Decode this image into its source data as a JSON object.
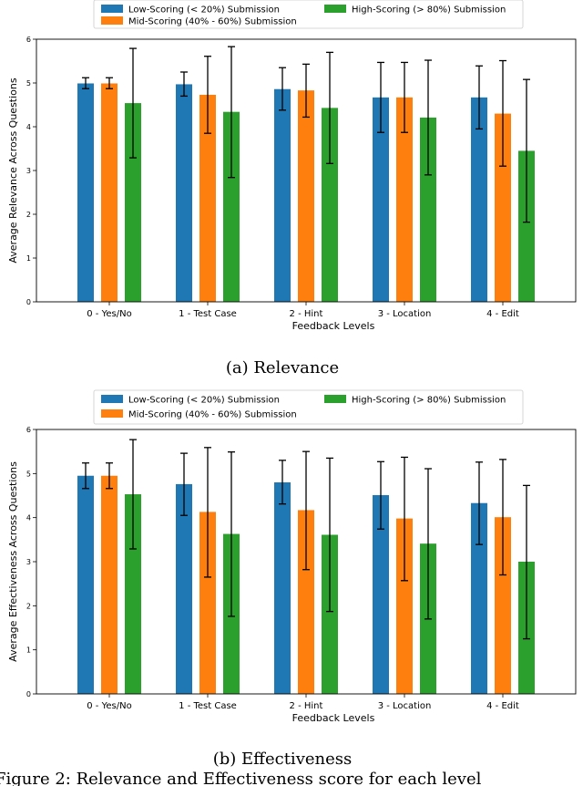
{
  "chart_data": [
    {
      "type": "bar",
      "subcaption": "(a) Relevance",
      "title": "",
      "xlabel": "Feedback Levels",
      "ylabel": "Average Relevance Across Questions",
      "ylim": [
        0,
        6
      ],
      "yticks": [
        "0",
        "1",
        "2",
        "3",
        "4",
        "5",
        "6"
      ],
      "categories": [
        "0 - Yes/No",
        "1 - Test Case",
        "2 - Hint",
        "3 - Location",
        "4 - Edit"
      ],
      "legend_position": "top",
      "series": [
        {
          "name": "Low-Scoring (< 20%) Submission",
          "color": "#1f77b4",
          "values": [
            4.99,
            4.97,
            4.86,
            4.67,
            4.67
          ],
          "err_low": [
            4.87,
            4.7,
            4.38,
            3.87,
            3.95
          ],
          "err_high": [
            5.12,
            5.25,
            5.35,
            5.47,
            5.39
          ]
        },
        {
          "name": "Mid-Scoring (40% - 60%) Submission",
          "color": "#ff7f0e",
          "values": [
            4.99,
            4.73,
            4.83,
            4.67,
            4.3
          ],
          "err_low": [
            4.87,
            3.85,
            4.22,
            3.87,
            3.1
          ],
          "err_high": [
            5.12,
            5.61,
            5.43,
            5.47,
            5.51
          ]
        },
        {
          "name": "High-Scoring (> 80%) Submission",
          "color": "#2ca02c",
          "values": [
            4.54,
            4.34,
            4.43,
            4.21,
            3.45
          ],
          "err_low": [
            3.29,
            2.84,
            3.16,
            2.9,
            1.82
          ],
          "err_high": [
            5.79,
            5.83,
            5.7,
            5.52,
            5.08
          ]
        }
      ]
    },
    {
      "type": "bar",
      "subcaption": "(b) Effectiveness",
      "title": "",
      "xlabel": "Feedback Levels",
      "ylabel": "Average Effectiveness Across Questions",
      "ylim": [
        0,
        6
      ],
      "yticks": [
        "0",
        "1",
        "2",
        "3",
        "4",
        "5",
        "6"
      ],
      "categories": [
        "0 - Yes/No",
        "1 - Test Case",
        "2 - Hint",
        "3 - Location",
        "4 - Edit"
      ],
      "legend_position": "top",
      "series": [
        {
          "name": "Low-Scoring (< 20%) Submission",
          "color": "#1f77b4",
          "values": [
            4.95,
            4.76,
            4.8,
            4.51,
            4.33
          ],
          "err_low": [
            4.66,
            4.05,
            4.31,
            3.74,
            3.39
          ],
          "err_high": [
            5.24,
            5.46,
            5.3,
            5.27,
            5.26
          ]
        },
        {
          "name": "Mid-Scoring (40% - 60%) Submission",
          "color": "#ff7f0e",
          "values": [
            4.95,
            4.13,
            4.17,
            3.98,
            4.01
          ],
          "err_low": [
            4.66,
            2.65,
            2.82,
            2.57,
            2.7
          ],
          "err_high": [
            5.24,
            5.59,
            5.5,
            5.37,
            5.32
          ]
        },
        {
          "name": "High-Scoring (> 80%) Submission",
          "color": "#2ca02c",
          "values": [
            4.53,
            3.63,
            3.61,
            3.41,
            3.0
          ],
          "err_low": [
            3.29,
            1.76,
            1.87,
            1.7,
            1.25
          ],
          "err_high": [
            5.77,
            5.49,
            5.35,
            5.11,
            4.73
          ]
        }
      ]
    }
  ],
  "figure_caption": "Figure 2: Relevance and Effectiveness score for each level"
}
